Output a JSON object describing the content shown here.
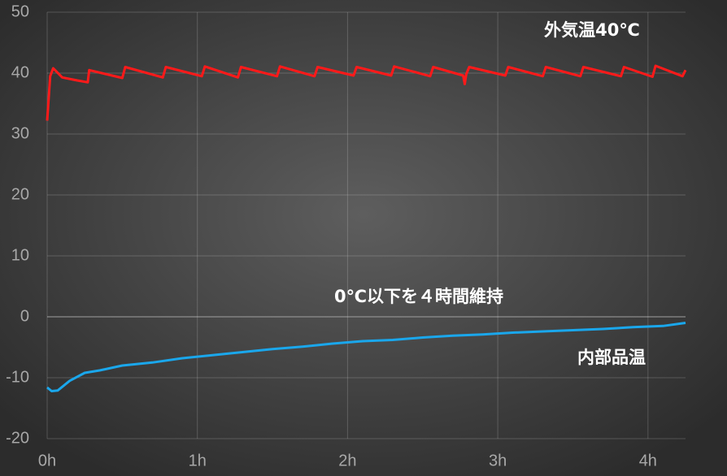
{
  "chart_data": {
    "type": "line",
    "annotation": "0℃以下を４時間維持",
    "xlim": [
      0,
      4.25
    ],
    "xticks": [
      {
        "value": 0,
        "label": "0h"
      },
      {
        "value": 1,
        "label": "1h"
      },
      {
        "value": 2,
        "label": "2h"
      },
      {
        "value": 3,
        "label": "3h"
      },
      {
        "value": 4,
        "label": "4h"
      }
    ],
    "ylim": [
      -20,
      50
    ],
    "yticks": [
      -20,
      -10,
      0,
      10,
      20,
      30,
      40,
      50
    ],
    "grid": true,
    "series": [
      {
        "name": "外気温40℃",
        "color": "#ff1a1a",
        "x": [
          0,
          0.02,
          0.04,
          0.1,
          0.2,
          0.27,
          0.28,
          0.5,
          0.52,
          0.77,
          0.79,
          1.03,
          1.05,
          1.27,
          1.29,
          1.53,
          1.55,
          1.78,
          1.8,
          2.04,
          2.06,
          2.29,
          2.31,
          2.55,
          2.57,
          2.77,
          2.78,
          2.79,
          2.81,
          3.05,
          3.07,
          3.3,
          3.32,
          3.55,
          3.57,
          3.82,
          3.84,
          4.03,
          4.05,
          4.23,
          4.25
        ],
        "values": [
          32.2,
          39.5,
          40.8,
          39.3,
          38.8,
          38.5,
          40.5,
          39.2,
          41.0,
          39.3,
          41.0,
          39.5,
          41.1,
          39.3,
          41.0,
          39.5,
          41.1,
          39.5,
          41.0,
          39.6,
          41.0,
          39.6,
          41.1,
          39.5,
          41.0,
          39.6,
          38.2,
          39.8,
          41.0,
          39.6,
          41.0,
          39.5,
          41.0,
          39.5,
          41.0,
          39.5,
          41.0,
          39.4,
          41.2,
          39.5,
          40.5
        ]
      },
      {
        "name": "内部品温",
        "color": "#1aa7ec",
        "x": [
          0,
          0.03,
          0.07,
          0.15,
          0.25,
          0.35,
          0.5,
          0.7,
          0.9,
          1.1,
          1.3,
          1.5,
          1.7,
          1.9,
          2.1,
          2.3,
          2.5,
          2.7,
          2.9,
          3.1,
          3.3,
          3.5,
          3.7,
          3.9,
          4.1,
          4.25
        ],
        "values": [
          -11.6,
          -12.2,
          -12.1,
          -10.5,
          -9.2,
          -8.8,
          -8.0,
          -7.5,
          -6.8,
          -6.3,
          -5.8,
          -5.3,
          -4.9,
          -4.4,
          -4.0,
          -3.8,
          -3.4,
          -3.1,
          -2.9,
          -2.6,
          -2.4,
          -2.2,
          -2.0,
          -1.7,
          -1.5,
          -1.0
        ]
      }
    ]
  }
}
